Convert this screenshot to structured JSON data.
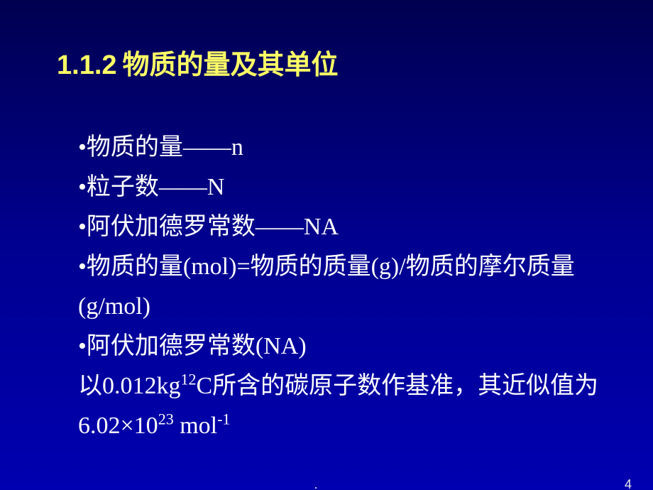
{
  "title": {
    "number": "1.1.2",
    "text": "物质的量及其单位",
    "number_color": "#ffff66",
    "text_color": "#ffff66",
    "fontsize": 38
  },
  "body": {
    "color": "#ffffff",
    "fontsize": 34,
    "lines": {
      "l1_pre": "•物质的量——n",
      "l2_pre": "•粒子数——N",
      "l3_pre": "•阿伏加德罗常数——NA",
      "l4_pre": "•物质的量(mol)=物质的质量(g)/物质的摩尔质量(g/mol)",
      "l5_pre": "•阿伏加德罗常数(NA)",
      "l6_a": "以0.012kg",
      "l6_sup1": "12",
      "l6_b": "C所含的碳原子数作基准，其近似值为6.02×10",
      "l6_sup2": "23",
      "l6_c": " mol",
      "l6_sup3": "-1"
    }
  },
  "footer": {
    "dot": ".",
    "page_number": "4",
    "color": "#e8e8e8"
  },
  "background": {
    "gradient_top": "#000050",
    "gradient_mid": "#000090",
    "gradient_bottom": "#0000b0"
  }
}
